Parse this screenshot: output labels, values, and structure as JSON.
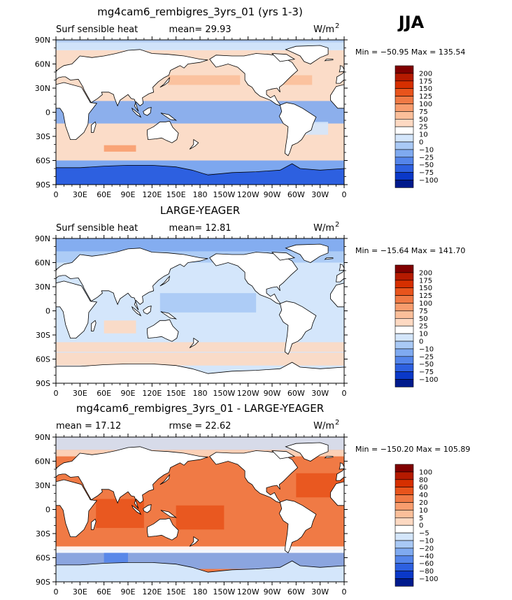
{
  "season": "JJA",
  "colors": {
    "ocean_base": "#fbd9c4",
    "land": "#ffffff",
    "coast": "#000000"
  },
  "panels": [
    {
      "id": "model",
      "title": "mg4cam6_rembigres_3yrs_01 (yrs 1-3)",
      "left_label": "Surf sensible heat",
      "center_label": "mean=  29.93",
      "units": "W/m",
      "units_sup": "2",
      "minmax": "Min = −50.95 Max = 135.54",
      "cb_levels": [
        "200",
        "175",
        "150",
        "125",
        "100",
        "75",
        "50",
        "25",
        "10",
        "0",
        "−10",
        "−25",
        "−50",
        "−75",
        "−100"
      ],
      "cb_colors": [
        "#800000",
        "#b51a00",
        "#d62f00",
        "#e8541c",
        "#f07a45",
        "#f89d6e",
        "#fbbf9a",
        "#fdd9c2",
        "#ffffff",
        "#d4e6fb",
        "#a9c9f5",
        "#7faaf0",
        "#5485ea",
        "#2d60e0",
        "#0a38c8",
        "#001a8c"
      ],
      "ocean_base": "#fbdcc8"
    },
    {
      "id": "obs",
      "title": "LARGE-YEAGER",
      "left_label": "Surf sensible heat",
      "center_label": "mean=  12.81",
      "units": "W/m",
      "units_sup": "2",
      "minmax": "Min = −15.64 Max = 141.70",
      "cb_levels": [
        "200",
        "175",
        "150",
        "125",
        "100",
        "75",
        "50",
        "25",
        "10",
        "0",
        "−10",
        "−25",
        "−50",
        "−75",
        "−100"
      ],
      "cb_colors": [
        "#800000",
        "#b51a00",
        "#d62f00",
        "#e8541c",
        "#f07a45",
        "#f89d6e",
        "#fbbf9a",
        "#fdd9c2",
        "#ffffff",
        "#d4e6fb",
        "#a9c9f5",
        "#7faaf0",
        "#5485ea",
        "#2d60e0",
        "#0a38c8",
        "#001a8c"
      ],
      "ocean_base": "#d4e6fb"
    },
    {
      "id": "diff",
      "title": "mg4cam6_rembigres_3yrs_01 - LARGE-YEAGER",
      "left_label": "mean =  17.12",
      "center_label": "rmse =  22.62",
      "units": "W/m",
      "units_sup": "2",
      "minmax": "Min = −150.20 Max = 105.89",
      "cb_levels": [
        "100",
        "80",
        "60",
        "40",
        "20",
        "10",
        "5",
        "0",
        "−5",
        "−10",
        "−20",
        "−40",
        "−60",
        "−80",
        "−100"
      ],
      "cb_colors": [
        "#800000",
        "#b51a00",
        "#d62f00",
        "#e8541c",
        "#f07a45",
        "#f89d6e",
        "#fbbf9a",
        "#fdd9c2",
        "#ffffff",
        "#d4e6fb",
        "#a9c9f5",
        "#7faaf0",
        "#5485ea",
        "#2d60e0",
        "#0a38c8",
        "#001a8c"
      ],
      "ocean_base": "#f07a45"
    }
  ],
  "chart_data": {
    "type": "heatmap",
    "title": "JJA",
    "xlabel": "",
    "ylabel": "",
    "x_ticks": [
      "0",
      "30E",
      "60E",
      "90E",
      "120E",
      "150E",
      "180",
      "150W",
      "120W",
      "90W",
      "60W",
      "30W",
      "0"
    ],
    "y_ticks": [
      "90N",
      "60N",
      "30N",
      "0",
      "30S",
      "60S",
      "90S"
    ],
    "xlim": [
      0,
      360
    ],
    "ylim": [
      -90,
      90
    ],
    "series": [
      {
        "name": "mg4cam6_rembigres_3yrs_01 (yrs 1-3)",
        "mean": 29.93,
        "min": -50.95,
        "max": 135.54,
        "units": "W/m2"
      },
      {
        "name": "LARGE-YEAGER",
        "mean": 12.81,
        "min": -15.64,
        "max": 141.7,
        "units": "W/m2"
      },
      {
        "name": "mg4cam6_rembigres_3yrs_01 - LARGE-YEAGER",
        "mean": 17.12,
        "rmse": 22.62,
        "min": -150.2,
        "max": 105.89,
        "units": "W/m2"
      }
    ]
  }
}
